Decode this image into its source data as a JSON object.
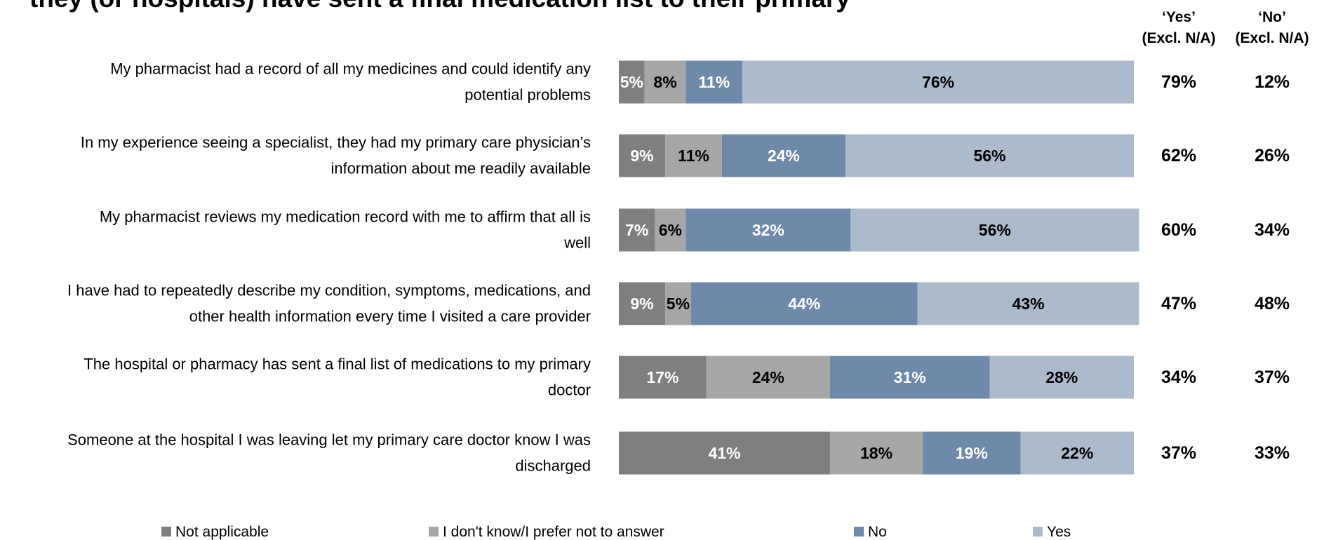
{
  "chart_data": {
    "type": "bar",
    "title": "they (or hospitals) have sent a final medication list to their primary physician",
    "stacked": true,
    "orientation": "horizontal",
    "categories": [
      [
        "My pharmacist had a record of all my medicines and could identify any",
        "potential problems"
      ],
      [
        "In my experience seeing a specialist, they had my primary care physician’s",
        "information about me readily available"
      ],
      [
        "My pharmacist reviews my medication record with me to affirm that all is",
        "well"
      ],
      [
        "I have had to repeatedly describe my condition, symptoms, medications, and",
        "other health information every time I visited a care provider"
      ],
      [
        "The hospital or pharmacy has sent a final list of medications to my primary",
        "doctor"
      ],
      [
        "Someone at the hospital I was leaving let my primary care doctor know I was",
        "discharged"
      ]
    ],
    "series": [
      {
        "name": "Not applicable",
        "color": "#7f7f7f",
        "label_color": "#ffffff",
        "values": [
          5,
          9,
          7,
          9,
          17,
          41
        ]
      },
      {
        "name": "I don't know/I prefer not to answer",
        "color": "#a6a6a6",
        "label_color": "#000000",
        "values": [
          8,
          11,
          6,
          5,
          24,
          18
        ]
      },
      {
        "name": "No",
        "color": "#6e89a9",
        "label_color": "#ffffff",
        "values": [
          11,
          24,
          32,
          44,
          31,
          19
        ]
      },
      {
        "name": "Yes",
        "color": "#adbacb",
        "label_color": "#000000",
        "values": [
          76,
          56,
          56,
          43,
          28,
          22
        ]
      }
    ],
    "value_suffix": "%",
    "xlim": [
      0,
      100
    ],
    "legend_position": "bottom",
    "summary_columns": [
      {
        "header": [
          "‘Yes’",
          "(Excl. N/A)"
        ],
        "values": [
          "79%",
          "62%",
          "60%",
          "47%",
          "34%",
          "37%"
        ]
      },
      {
        "header": [
          "‘No’",
          "(Excl. N/A)"
        ],
        "values": [
          "12%",
          "26%",
          "34%",
          "48%",
          "37%",
          "33%"
        ]
      }
    ]
  }
}
